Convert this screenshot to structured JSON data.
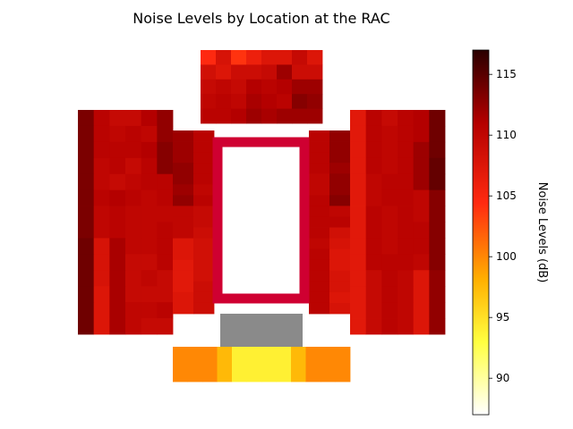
{
  "chart_data": {
    "type": "heatmap",
    "title": "Noise Levels by Location at the RAC",
    "colorbar": {
      "label": "Noise Levels (dB)",
      "range": [
        87,
        117
      ],
      "ticks": [
        90,
        95,
        100,
        105,
        110,
        115
      ],
      "colormap": "hot_r"
    },
    "grid": "off",
    "zones": [
      {
        "name": "top",
        "values": [
          [
            104.5,
            108,
            104,
            106,
            107.5,
            107.5,
            109.5,
            107.5
          ],
          [
            108.5,
            107.5,
            109,
            109,
            109.5,
            112,
            109,
            109
          ],
          [
            109.5,
            110,
            109.5,
            111,
            110.5,
            111,
            112,
            112
          ],
          [
            110,
            110.5,
            110,
            111.5,
            111,
            110.5,
            113,
            112.5
          ],
          [
            110.5,
            110.5,
            111,
            112,
            111.5,
            112,
            112,
            112
          ]
        ]
      },
      {
        "name": "left-outer",
        "values": [
          [
            113.5,
            110.5,
            109.5,
            109.5,
            111,
            112.5
          ],
          [
            113.5,
            110.5,
            110,
            110.5,
            110,
            112.5
          ],
          [
            113.5,
            110.5,
            110.5,
            110.5,
            111,
            113
          ],
          [
            113.5,
            110,
            110.5,
            109.5,
            110.5,
            113
          ],
          [
            113.5,
            110,
            109.5,
            110,
            110.5,
            110.5
          ],
          [
            113.5,
            110.5,
            111,
            110.5,
            110,
            110.5
          ],
          [
            113.5,
            110,
            110.5,
            110,
            110,
            110
          ],
          [
            113.5,
            110,
            110.5,
            110,
            110,
            110.5
          ],
          [
            114,
            108,
            111.5,
            110,
            110,
            110.5
          ],
          [
            114,
            108,
            111.5,
            109.5,
            109.5,
            110.5
          ],
          [
            114,
            108,
            111.5,
            109.5,
            110,
            109.5
          ],
          [
            114,
            107.5,
            111.5,
            109.5,
            109.5,
            109.5
          ],
          [
            114,
            107.5,
            111.5,
            110,
            110,
            110.5
          ],
          [
            114,
            107.5,
            111.5,
            110,
            109.5,
            109.5
          ]
        ]
      },
      {
        "name": "left-inner",
        "values": [
          [
            112,
            110.5
          ],
          [
            112,
            110.5
          ],
          [
            112,
            110.5
          ],
          [
            112.5,
            110.5
          ],
          [
            112.5,
            110.5
          ],
          [
            112,
            110
          ],
          [
            112.5,
            110.5
          ],
          [
            110,
            109.5
          ],
          [
            110,
            109.5
          ],
          [
            110,
            109
          ],
          [
            107.5,
            108.5
          ],
          [
            107.5,
            108.5
          ],
          [
            107,
            108.5
          ],
          [
            107,
            108.5
          ],
          [
            107,
            109
          ],
          [
            107.5,
            109
          ],
          [
            107.5,
            109
          ]
        ]
      },
      {
        "name": "right-inner",
        "values": [
          [
            110.5,
            112.5
          ],
          [
            110.5,
            112.5
          ],
          [
            110.5,
            112.5
          ],
          [
            110.5,
            112
          ],
          [
            110,
            112.5
          ],
          [
            110,
            112.5
          ],
          [
            110.5,
            113
          ],
          [
            110.5,
            110
          ],
          [
            110.5,
            110.5
          ],
          [
            110.5,
            108.5
          ],
          [
            110,
            108
          ],
          [
            110.5,
            107.5
          ],
          [
            110.5,
            107.5
          ],
          [
            110.5,
            108
          ],
          [
            110.5,
            108
          ],
          [
            110.5,
            107.5
          ],
          [
            110.5,
            108
          ]
        ]
      },
      {
        "name": "right-outer",
        "values": [
          [
            107,
            110.5,
            109.5,
            110.5,
            111,
            114
          ],
          [
            107,
            110.5,
            110,
            110.5,
            111,
            114
          ],
          [
            107,
            110.5,
            110,
            110.5,
            112,
            114
          ],
          [
            107,
            110.5,
            110,
            110.5,
            112,
            114.5
          ],
          [
            107,
            110,
            110.5,
            110.5,
            112,
            114.5
          ],
          [
            107,
            110,
            110.5,
            110.5,
            110,
            113
          ],
          [
            107,
            110.5,
            110,
            110.5,
            110,
            113
          ],
          [
            107,
            110.5,
            110,
            110.5,
            110.5,
            113
          ],
          [
            107,
            110.5,
            110,
            110.5,
            110.5,
            113
          ],
          [
            107,
            110.5,
            110.5,
            110.5,
            110,
            113
          ],
          [
            107,
            109.5,
            110.5,
            110,
            107.5,
            112.5
          ],
          [
            107,
            109.5,
            110.5,
            110,
            107.5,
            112.5
          ],
          [
            107,
            109.5,
            110.5,
            110,
            107.5,
            112.5
          ],
          [
            107,
            109.5,
            110.5,
            110,
            107.5,
            112.5
          ]
        ]
      },
      {
        "name": "bottom",
        "values": [
          [
            100,
            100,
            100,
            97.5,
            94,
            94,
            94,
            94,
            97.5,
            100,
            100,
            100
          ]
        ]
      }
    ],
    "ring": {
      "color": "#cf0031"
    },
    "gray_block": {
      "color": "#8a8a8a"
    }
  }
}
